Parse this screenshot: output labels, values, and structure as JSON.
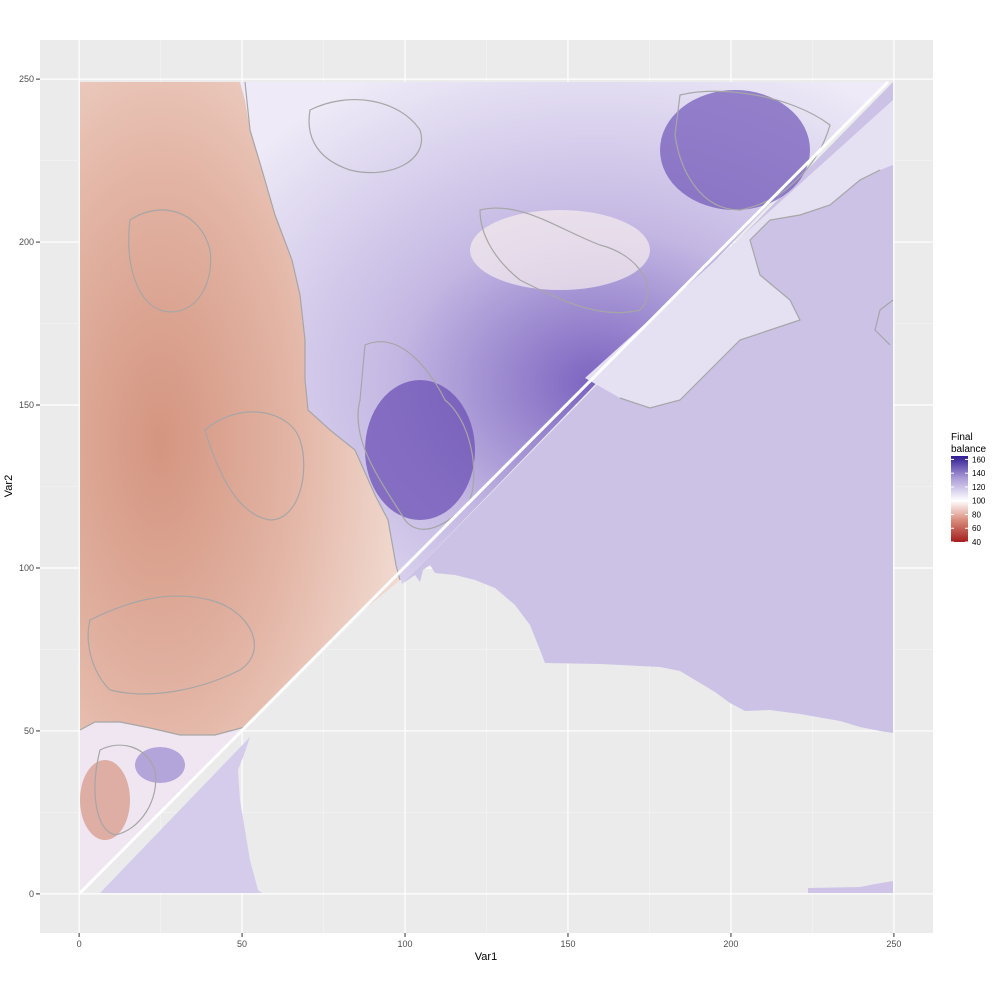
{
  "chart_data": {
    "type": "heatmap",
    "title": "",
    "xlabel": "Var1",
    "ylabel": "Var2",
    "xlim": [
      -12,
      262
    ],
    "ylim": [
      -12,
      262
    ],
    "x_ticks": [
      0,
      50,
      100,
      150,
      200,
      250
    ],
    "y_ticks": [
      0,
      50,
      100,
      150,
      200,
      250
    ],
    "grid": true,
    "legend": {
      "title": "Final\nbalance",
      "position": "right",
      "ticks": [
        160,
        140,
        120,
        100,
        80,
        60,
        40
      ],
      "range": [
        40,
        165
      ],
      "midpoint": 100
    },
    "colors": {
      "low": "#a31d1d",
      "mid": "#ffffff",
      "high": "#2f1a93",
      "panel_bg": "#ebebeb",
      "grid_major": "#ffffff",
      "contour": "#a6a6a6"
    },
    "regions": [
      {
        "name": "upper-left-red",
        "approx_value": 78
      },
      {
        "name": "upper-middle-purple",
        "approx_value": 118
      },
      {
        "name": "lower-right-flat",
        "approx_value": 122
      },
      {
        "name": "lower-left-mixed",
        "approx_value": 95
      }
    ]
  }
}
